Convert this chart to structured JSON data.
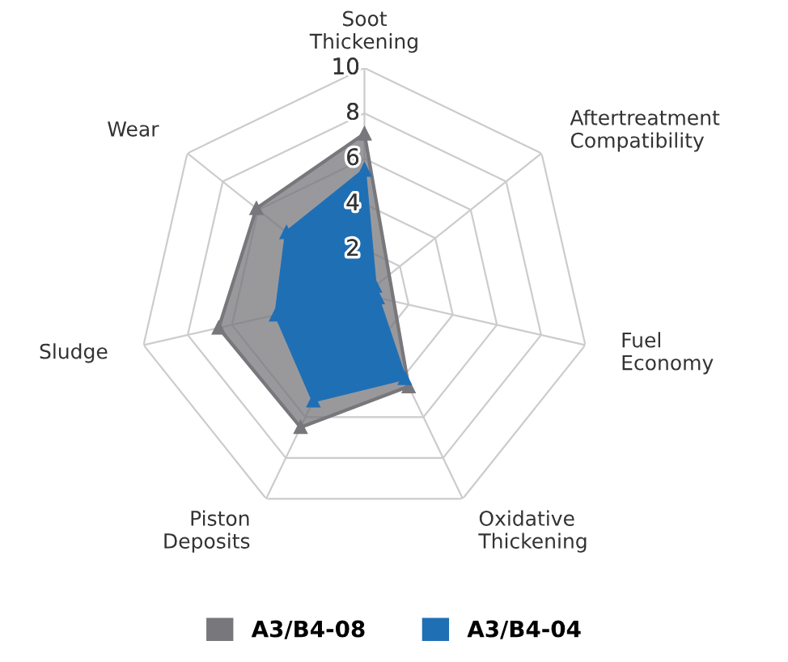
{
  "chart_data": {
    "type": "radar",
    "categories": [
      "Soot\nThickening",
      "Aftertreatment\nCompatibility",
      "Fuel\nEconomy",
      "Oxidative\nThickening",
      "Piston\nDeposits",
      "Sludge",
      "Wear"
    ],
    "series": [
      {
        "name": "A3/B4-08",
        "color": "#77777c",
        "values": [
          7.1,
          null,
          null,
          4.5,
          6.5,
          6.6,
          6.1
        ]
      },
      {
        "name": "A3/B4-04",
        "color": "#1f6fb5",
        "values": [
          5.5,
          0.6,
          0.6,
          4.1,
          5.2,
          4.0,
          4.4
        ]
      }
    ],
    "ylim": [
      0,
      10
    ],
    "yticks": [
      2,
      4,
      6,
      8,
      10
    ],
    "grid": true,
    "legend": "bottom",
    "marker": "triangle"
  }
}
